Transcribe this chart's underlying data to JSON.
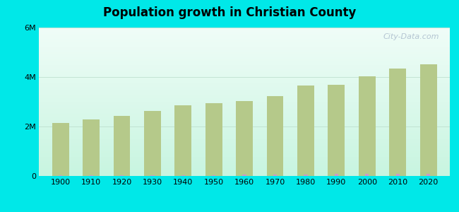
{
  "title": "Population growth in Christian County",
  "years": [
    1900,
    1910,
    1920,
    1930,
    1940,
    1950,
    1960,
    1970,
    1980,
    1990,
    2000,
    2010,
    2020
  ],
  "kentucky_values": [
    2147174,
    2289905,
    2416630,
    2614589,
    2845627,
    2944806,
    3038156,
    3218706,
    3660257,
    3685296,
    4041769,
    4339367,
    4505836
  ],
  "christian_county_values": [
    32000,
    34000,
    36000,
    38000,
    39000,
    41000,
    56000,
    66000,
    67000,
    72000,
    72000,
    73000,
    79325
  ],
  "kentucky_color": "#b5c98a",
  "christian_county_color": "#cc99cc",
  "outer_bg": "#00e8e8",
  "ylim": [
    0,
    6000000
  ],
  "yticks": [
    0,
    2000000,
    4000000,
    6000000
  ],
  "ytick_labels": [
    "0",
    "2M",
    "4M",
    "6M"
  ],
  "watermark": "City-Data.com",
  "bar_width": 5.5,
  "bg_top_color": "#f0fdf8",
  "bg_bottom_color": "#c8f5e0"
}
